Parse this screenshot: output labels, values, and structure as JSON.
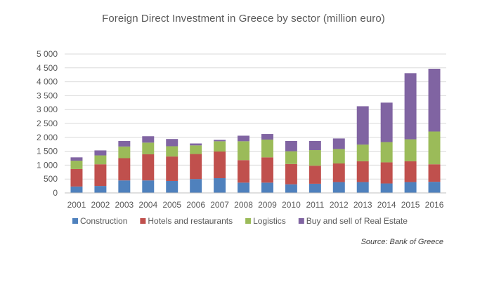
{
  "chart_data": {
    "type": "bar",
    "stacked": true,
    "title": "Foreign Direct Investment in Greece by sector (million euro)",
    "xlabel": "",
    "ylabel": "",
    "ylim": [
      0,
      5000
    ],
    "yticks": [
      "0",
      "500",
      "1 000",
      "1 500",
      "2 000",
      "2 500",
      "3 000",
      "3 500",
      "4 000",
      "4 500",
      "5 000"
    ],
    "ytick_values": [
      0,
      500,
      1000,
      1500,
      2000,
      2500,
      3000,
      3500,
      4000,
      4500,
      5000
    ],
    "grid": true,
    "legend_position": "bottom",
    "categories": [
      "2001",
      "2002",
      "2003",
      "2004",
      "2005",
      "2006",
      "2007",
      "2008",
      "2009",
      "2010",
      "2011",
      "2012",
      "2013",
      "2014",
      "2015",
      "2016"
    ],
    "series": [
      {
        "name": "Construction",
        "color": "#4f81bd",
        "values": [
          230,
          250,
          450,
          450,
          430,
          500,
          530,
          370,
          370,
          310,
          330,
          390,
          390,
          340,
          390,
          400
        ]
      },
      {
        "name": "Hotels and restaurants",
        "color": "#c0504d",
        "values": [
          630,
          780,
          800,
          940,
          880,
          900,
          960,
          810,
          910,
          730,
          650,
          670,
          750,
          760,
          750,
          630
        ]
      },
      {
        "name": "Logistics",
        "color": "#9bbb59",
        "values": [
          300,
          320,
          420,
          420,
          370,
          310,
          370,
          680,
          640,
          460,
          560,
          520,
          600,
          730,
          790,
          1180
        ]
      },
      {
        "name": "Buy and sell of Real Estate",
        "color": "#8064a2",
        "values": [
          120,
          180,
          200,
          230,
          260,
          70,
          50,
          200,
          200,
          370,
          330,
          380,
          1380,
          1420,
          2380,
          2260
        ]
      }
    ],
    "source": "Source: Bank of Greece",
    "gridline_color": "#d9d9d9",
    "axis_color": "#bfbfbf",
    "text_color": "#595959"
  }
}
